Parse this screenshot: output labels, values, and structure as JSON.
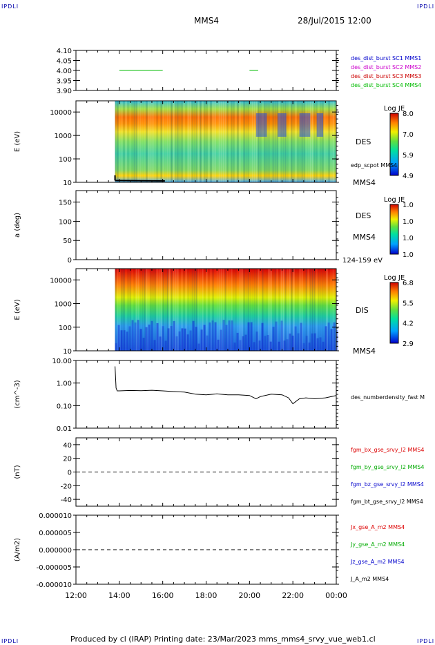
{
  "header": {
    "corner_label": "IPDLI",
    "title": "MMS4",
    "datetime": "28/Jul/2015 12:00"
  },
  "footer": {
    "text": "Produced by cl (IRAP)   Printing date: 23/Mar/2023   mms_mms4_srvy_vue_web1.cl"
  },
  "time_axis": {
    "ticks": [
      "12:00",
      "14:00",
      "16:00",
      "18:00",
      "20:00",
      "22:00",
      "00:00"
    ]
  },
  "colors": {
    "mms1": "#0000cc",
    "mms2": "#cc00cc",
    "mms3": "#cc0000",
    "mms4": "#00bb00",
    "bx": "#dd0000",
    "by": "#00aa00",
    "bz": "#0000cc",
    "bt": "#000000"
  },
  "chart_data": [
    {
      "type": "line",
      "panel": "burst_flags",
      "ylabel": "",
      "ylim": [
        3.9,
        4.1
      ],
      "y_ticks": [
        "4.10",
        "4.05",
        "4.00",
        "3.95",
        "3.90"
      ],
      "legend": [
        {
          "name": "des_dist_burst SC1 MMS1",
          "color_key": "mms1"
        },
        {
          "name": "des_dist_burst SC2 MMS2",
          "color_key": "mms2"
        },
        {
          "name": "des_dist_burst SC3 MMS3",
          "color_key": "mms3"
        },
        {
          "name": "des_dist_burst SC4 MMS4",
          "color_key": "mms4"
        }
      ],
      "series": [
        {
          "name": "des_dist_burst SC4 MMS4",
          "segments": [
            [
              14.0,
              16.0
            ],
            [
              20.0,
              20.4
            ]
          ],
          "value": 4.0
        }
      ]
    },
    {
      "type": "heatmap",
      "panel": "des_energy",
      "ylabel": "E (eV)",
      "scale": "log",
      "ylim": [
        10,
        30000
      ],
      "y_ticks": [
        "10000",
        "1000",
        "100",
        "10"
      ],
      "data_start_hour": 13.8,
      "side_labels": [
        "DES",
        "MMS4"
      ],
      "overlay_label": "edp_scpot MMS4",
      "colorbar": {
        "title": "Log JE",
        "ticks": [
          "8.0",
          "7.0",
          "5.9",
          "4.9"
        ]
      }
    },
    {
      "type": "heatmap",
      "panel": "des_pitch",
      "ylabel": "a (deg)",
      "ylim": [
        0,
        180
      ],
      "y_ticks": [
        "150",
        "100",
        "50",
        "0"
      ],
      "side_labels": [
        "DES",
        "MMS4"
      ],
      "bottom_note": "124-159 eV",
      "colorbar": {
        "title": "Log JE",
        "ticks": [
          "1.0",
          "1.0",
          "1.0",
          "1.0"
        ]
      }
    },
    {
      "type": "heatmap",
      "panel": "dis_energy",
      "ylabel": "E (eV)",
      "scale": "log",
      "ylim": [
        10,
        30000
      ],
      "y_ticks": [
        "10000",
        "1000",
        "100",
        "10"
      ],
      "data_start_hour": 13.8,
      "side_labels": [
        "DIS",
        "MMS4"
      ],
      "colorbar": {
        "title": "Log JE",
        "ticks": [
          "6.8",
          "5.5",
          "4.2",
          "2.9"
        ]
      }
    },
    {
      "type": "line",
      "panel": "density",
      "ylabel": "(cm^-3)",
      "scale": "log",
      "ylim": [
        0.01,
        10
      ],
      "y_ticks": [
        "10.00",
        "1.00",
        "0.10",
        "0.01"
      ],
      "series": [
        {
          "name": "des_numberdensity_fast M",
          "x": [
            13.8,
            13.85,
            13.9,
            14.0,
            14.5,
            15.0,
            15.5,
            16.0,
            16.5,
            17.0,
            17.5,
            18.0,
            18.5,
            19.0,
            19.5,
            20.0,
            20.3,
            20.5,
            21.0,
            21.5,
            21.8,
            22.0,
            22.3,
            22.6,
            23.0,
            23.5,
            24.0
          ],
          "y": [
            5.5,
            0.6,
            0.45,
            0.45,
            0.47,
            0.46,
            0.48,
            0.45,
            0.42,
            0.4,
            0.32,
            0.3,
            0.33,
            0.3,
            0.3,
            0.28,
            0.2,
            0.25,
            0.32,
            0.3,
            0.22,
            0.12,
            0.2,
            0.22,
            0.2,
            0.22,
            0.28
          ]
        }
      ]
    },
    {
      "type": "line",
      "panel": "magnetic_field",
      "ylabel": "(nT)",
      "ylim": [
        -50,
        50
      ],
      "y_ticks": [
        "40",
        "20",
        "0",
        "-20",
        "-40"
      ],
      "reference_line": 0,
      "legend": [
        {
          "name": "fgm_bx_gse_srvy_l2 MMS4",
          "color_key": "bx"
        },
        {
          "name": "fgm_by_gse_srvy_l2 MMS4",
          "color_key": "by"
        },
        {
          "name": "fgm_bz_gse_srvy_l2 MMS4",
          "color_key": "bz"
        },
        {
          "name": "fgm_bt_gse_srvy_l2 MMS4",
          "color_key": "bt"
        }
      ]
    },
    {
      "type": "line",
      "panel": "current_density",
      "ylabel": "(A/m2)",
      "ylim": [
        -1e-05,
        1e-05
      ],
      "y_ticks": [
        "0.000010",
        "0.000005",
        "0.000000",
        "-0.000005",
        "-0.000010"
      ],
      "reference_line": 0,
      "legend": [
        {
          "name": "Jx_gse_A_m2 MMS4",
          "color_key": "bx"
        },
        {
          "name": "Jy_gse_A_m2 MMS4",
          "color_key": "by"
        },
        {
          "name": "Jz_gse_A_m2 MMS4",
          "color_key": "bz"
        },
        {
          "name": "J_A_m2 MMS4",
          "color_key": "bt"
        }
      ]
    }
  ]
}
